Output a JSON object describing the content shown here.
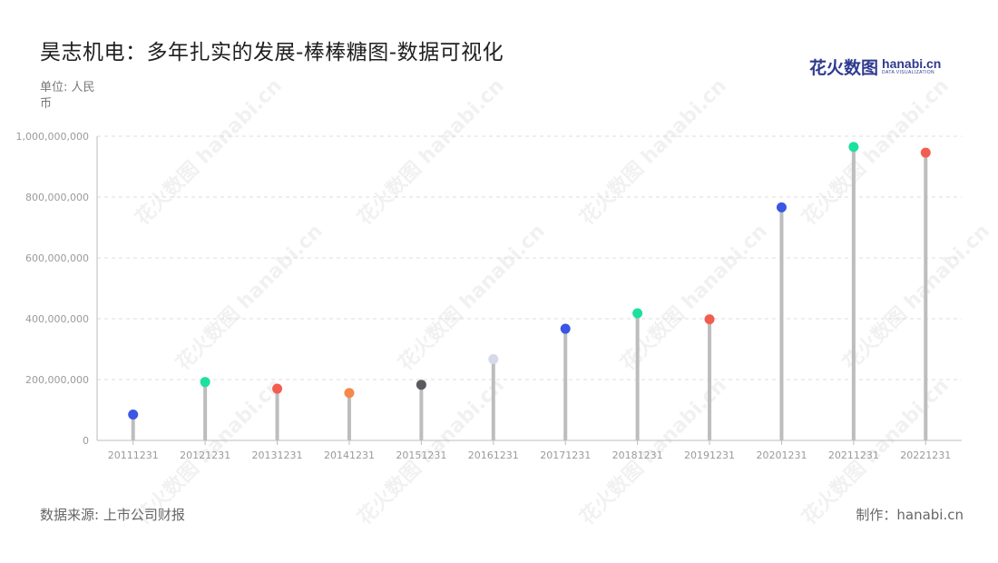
{
  "title": "昊志机电：多年扎实的发展-棒棒糖图-数据可视化",
  "unit_label": "单位: 人民币",
  "logo": {
    "cn": "花火数图",
    "en": "hanabi.cn",
    "sub": "DATA VISUALIZATION"
  },
  "source_label": "数据来源: 上市公司财报",
  "credit_label": "制作：hanabi.cn",
  "watermark": "花火数图 hanabi.cn",
  "colors": {
    "axis": "#bdbdbd",
    "grid": "#dcdcdc",
    "stem": "#bdbdbd",
    "tick_text": "#9a9a9a"
  },
  "chart_data": {
    "type": "lollipop",
    "categories": [
      "20111231",
      "20121231",
      "20131231",
      "20141231",
      "20151231",
      "20161231",
      "20171231",
      "20181231",
      "20191231",
      "20201231",
      "20211231",
      "20221231"
    ],
    "values": [
      85000000,
      192000000,
      170000000,
      156000000,
      183000000,
      267000000,
      367000000,
      418000000,
      398000000,
      766000000,
      965000000,
      946000000
    ],
    "dot_colors": [
      "#3a56e4",
      "#1de0a0",
      "#f25d50",
      "#f5894a",
      "#5a5a5f",
      "#d5d9ea",
      "#3a56e4",
      "#1de0a0",
      "#f25d50",
      "#3a56e4",
      "#1de0a0",
      "#f25d50"
    ],
    "ylim": [
      0,
      1000000000
    ],
    "yticks": [
      0,
      200000000,
      400000000,
      600000000,
      800000000,
      1000000000
    ],
    "ytick_labels": [
      "0",
      "200,000,000",
      "400,000,000",
      "600,000,000",
      "800,000,000",
      "1,000,000,000"
    ],
    "grid": true
  }
}
